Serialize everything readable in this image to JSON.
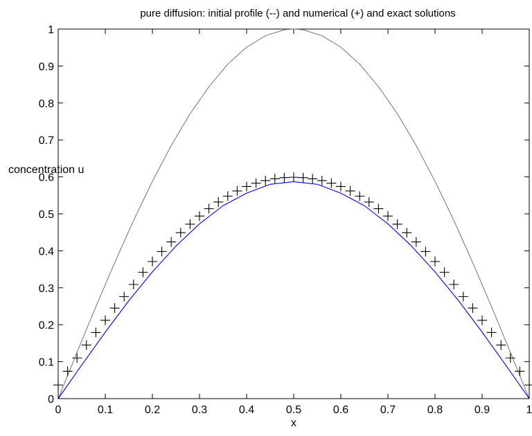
{
  "chart_data": {
    "type": "line",
    "title": "pure diffusion: initial profile (--) and numerical (+) and exact solutions",
    "xlabel": "x",
    "ylabel": "concentration u",
    "xlim": [
      0,
      1
    ],
    "ylim": [
      0,
      1
    ],
    "x_ticks": [
      "0",
      "0.1",
      "0.2",
      "0.3",
      "0.4",
      "0.5",
      "0.6",
      "0.7",
      "0.8",
      "0.9",
      "1"
    ],
    "y_ticks": [
      "0",
      "0.1",
      "0.2",
      "0.3",
      "0.4",
      "0.5",
      "0.6",
      "0.7",
      "0.8",
      "0.9",
      "1"
    ],
    "grid": false,
    "legend": "none",
    "series": [
      {
        "style": "line",
        "color": "#7f7f7f",
        "x": [
          0,
          0.04,
          0.08,
          0.12,
          0.16,
          0.2,
          0.24,
          0.28,
          0.32,
          0.36,
          0.4,
          0.44,
          0.48,
          0.5,
          0.52,
          0.56,
          0.6,
          0.64,
          0.68,
          0.72,
          0.76,
          0.8,
          0.84,
          0.88,
          0.92,
          0.96,
          1
        ],
        "values": [
          0,
          0.125,
          0.249,
          0.368,
          0.482,
          0.588,
          0.685,
          0.771,
          0.844,
          0.905,
          0.951,
          0.982,
          0.998,
          1.0,
          0.998,
          0.982,
          0.951,
          0.905,
          0.844,
          0.771,
          0.685,
          0.588,
          0.482,
          0.368,
          0.249,
          0.125,
          0
        ]
      },
      {
        "style": "markers",
        "marker": "+",
        "color": "#000000",
        "x": [
          0,
          0.02,
          0.04,
          0.06,
          0.08,
          0.1,
          0.12,
          0.14,
          0.16,
          0.18,
          0.2,
          0.22,
          0.24,
          0.26,
          0.28,
          0.3,
          0.32,
          0.34,
          0.36,
          0.38,
          0.4,
          0.42,
          0.44,
          0.46,
          0.48,
          0.5,
          0.52,
          0.54,
          0.56,
          0.58,
          0.6,
          0.62,
          0.64,
          0.66,
          0.68,
          0.7,
          0.72,
          0.74,
          0.76,
          0.78,
          0.8,
          0.82,
          0.84,
          0.86,
          0.88,
          0.9,
          0.92,
          0.94,
          0.96,
          0.98,
          1
        ],
        "values": [
          0.037,
          0.074,
          0.11,
          0.145,
          0.179,
          0.212,
          0.245,
          0.276,
          0.309,
          0.342,
          0.371,
          0.398,
          0.424,
          0.449,
          0.472,
          0.494,
          0.514,
          0.532,
          0.548,
          0.562,
          0.574,
          0.583,
          0.59,
          0.595,
          0.598,
          0.599,
          0.598,
          0.595,
          0.59,
          0.583,
          0.574,
          0.562,
          0.548,
          0.532,
          0.514,
          0.494,
          0.472,
          0.449,
          0.424,
          0.398,
          0.371,
          0.342,
          0.309,
          0.276,
          0.245,
          0.212,
          0.179,
          0.145,
          0.11,
          0.074,
          0.037
        ]
      },
      {
        "style": "line",
        "color": "#0000ff",
        "x": [
          0,
          0.05,
          0.1,
          0.15,
          0.2,
          0.25,
          0.3,
          0.35,
          0.4,
          0.45,
          0.5,
          0.55,
          0.6,
          0.65,
          0.7,
          0.75,
          0.8,
          0.85,
          0.9,
          0.95,
          1
        ],
        "values": [
          0,
          0.091,
          0.18,
          0.265,
          0.343,
          0.413,
          0.473,
          0.522,
          0.556,
          0.58,
          0.587,
          0.58,
          0.556,
          0.522,
          0.473,
          0.413,
          0.343,
          0.265,
          0.18,
          0.091,
          0
        ]
      }
    ]
  }
}
